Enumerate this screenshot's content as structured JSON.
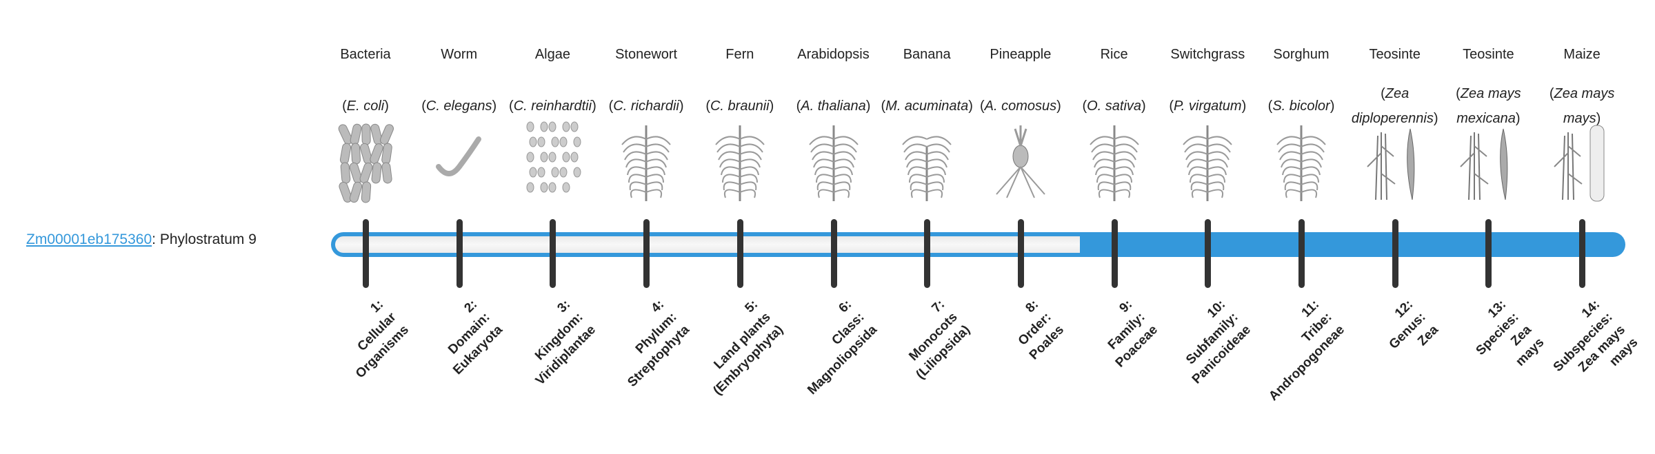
{
  "gene": {
    "id": "Zm00001eb175360",
    "suffix": ": Phylostratum 9"
  },
  "phylostratum": 9,
  "colors": {
    "accent": "#3498db",
    "tick": "#333333",
    "track": "#f2f2f2"
  },
  "organisms": [
    {
      "common": "Bacteria",
      "species": "E. coli",
      "icon": "bacteria-icon"
    },
    {
      "common": "Worm",
      "species": "C. elegans",
      "icon": "worm-icon"
    },
    {
      "common": "Algae",
      "species": "C. reinhardtii",
      "icon": "algae-icon"
    },
    {
      "common": "Stonewort",
      "species": "C. richardii",
      "icon": "stonewort-icon"
    },
    {
      "common": "Fern",
      "species": "C. braunii",
      "icon": "fern-icon"
    },
    {
      "common": "Arabidopsis",
      "species": "A. thaliana",
      "icon": "arabidopsis-icon"
    },
    {
      "common": "Banana",
      "species": "M. acuminata",
      "icon": "banana-icon"
    },
    {
      "common": "Pineapple",
      "species": "A. comosus",
      "icon": "pineapple-icon"
    },
    {
      "common": "Rice",
      "species": "O. sativa",
      "icon": "rice-icon"
    },
    {
      "common": "Switchgrass",
      "species": "P. virgatum",
      "icon": "switchgrass-icon"
    },
    {
      "common": "Sorghum",
      "species": "S. bicolor",
      "icon": "sorghum-icon"
    },
    {
      "common": "Teosinte",
      "species": "Zea diploperennis",
      "icon": "teosinte-icon"
    },
    {
      "common": "Teosinte",
      "species": "Zea mays mexicana",
      "icon": "teosinte-icon"
    },
    {
      "common": "Maize",
      "species": "Zea mays mays",
      "icon": "maize-icon"
    }
  ],
  "ranks": [
    "1:\nCellular\nOrganisms",
    "2:\nDomain:\nEukaryota",
    "3:\nKingdom:\nViridiplantae",
    "4:\nPhylum:\nStreptophyta",
    "5:\nLand plants\n(Embryophyta)",
    "6:\nClass:\nMagnoliopsida",
    "7:\nMonocots\n(Liliopsida)",
    "8:\nOrder:\nPoales",
    "9:\nFamily:\nPoaceae",
    "10:\nSubfamily:\nPanicoideae",
    "11:\nTribe:\nAndropogoneae",
    "12:\nGenus:\nZea",
    "13:\nSpecies:\nZea\nmays",
    "14:\nSubspecies:\nZea mays\nmays"
  ]
}
